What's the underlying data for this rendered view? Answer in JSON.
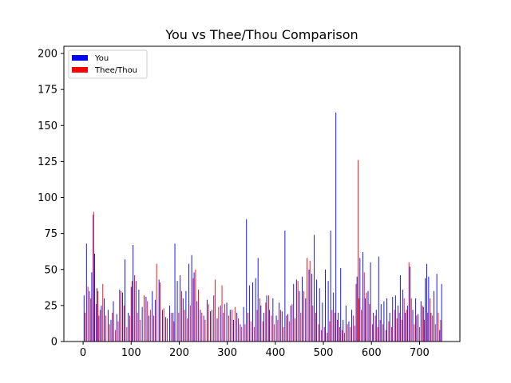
{
  "chart_data": {
    "type": "bar",
    "title": "You vs Thee/Thou Comparison",
    "xlabel": "",
    "ylabel": "",
    "xlim": [
      -40,
      784
    ],
    "ylim": [
      0,
      205
    ],
    "x_ticks": [
      0,
      100,
      200,
      300,
      400,
      500,
      600,
      700
    ],
    "y_ticks": [
      0,
      25,
      50,
      75,
      100,
      125,
      150,
      175,
      200
    ],
    "grid": false,
    "legend_position": "top-left",
    "series": [
      {
        "name": "You",
        "color": "#0000ff",
        "points": [
          [
            2,
            32
          ],
          [
            7,
            68
          ],
          [
            13,
            35
          ],
          [
            18,
            48
          ],
          [
            21,
            88
          ],
          [
            24,
            61
          ],
          [
            29,
            37
          ],
          [
            33,
            18
          ],
          [
            38,
            25
          ],
          [
            44,
            30
          ],
          [
            52,
            22
          ],
          [
            58,
            15
          ],
          [
            63,
            28
          ],
          [
            70,
            19
          ],
          [
            76,
            36
          ],
          [
            82,
            34
          ],
          [
            87,
            57
          ],
          [
            94,
            20
          ],
          [
            100,
            38
          ],
          [
            104,
            67
          ],
          [
            110,
            42
          ],
          [
            116,
            36
          ],
          [
            123,
            24
          ],
          [
            131,
            31
          ],
          [
            137,
            18
          ],
          [
            144,
            35
          ],
          [
            150,
            29
          ],
          [
            158,
            43
          ],
          [
            165,
            22
          ],
          [
            172,
            17
          ],
          [
            180,
            25
          ],
          [
            187,
            20
          ],
          [
            191,
            68
          ],
          [
            196,
            42
          ],
          [
            202,
            46
          ],
          [
            208,
            30
          ],
          [
            214,
            35
          ],
          [
            220,
            54
          ],
          [
            226,
            60
          ],
          [
            231,
            48
          ],
          [
            237,
            28
          ],
          [
            244,
            22
          ],
          [
            251,
            18
          ],
          [
            258,
            29
          ],
          [
            265,
            21
          ],
          [
            272,
            32
          ],
          [
            279,
            16
          ],
          [
            286,
            25
          ],
          [
            292,
            20
          ],
          [
            299,
            27
          ],
          [
            306,
            22
          ],
          [
            313,
            15
          ],
          [
            320,
            20
          ],
          [
            327,
            12
          ],
          [
            334,
            24
          ],
          [
            340,
            85
          ],
          [
            346,
            39
          ],
          [
            353,
            41
          ],
          [
            359,
            44
          ],
          [
            364,
            58
          ],
          [
            370,
            25
          ],
          [
            376,
            20
          ],
          [
            382,
            32
          ],
          [
            388,
            22
          ],
          [
            395,
            30
          ],
          [
            402,
            18
          ],
          [
            408,
            27
          ],
          [
            414,
            21
          ],
          [
            420,
            77
          ],
          [
            426,
            19
          ],
          [
            432,
            25
          ],
          [
            438,
            40
          ],
          [
            444,
            43
          ],
          [
            450,
            35
          ],
          [
            456,
            45
          ],
          [
            463,
            30
          ],
          [
            470,
            50
          ],
          [
            476,
            47
          ],
          [
            481,
            74
          ],
          [
            486,
            43
          ],
          [
            492,
            37
          ],
          [
            498,
            27
          ],
          [
            504,
            50
          ],
          [
            510,
            42
          ],
          [
            515,
            77
          ],
          [
            521,
            34
          ],
          [
            526,
            159
          ],
          [
            531,
            20
          ],
          [
            536,
            51
          ],
          [
            541,
            15
          ],
          [
            547,
            25
          ],
          [
            553,
            14
          ],
          [
            559,
            22
          ],
          [
            565,
            11
          ],
          [
            570,
            45
          ],
          [
            576,
            58
          ],
          [
            582,
            62
          ],
          [
            587,
            30
          ],
          [
            593,
            35
          ],
          [
            598,
            55
          ],
          [
            604,
            20
          ],
          [
            610,
            22
          ],
          [
            615,
            59
          ],
          [
            620,
            26
          ],
          [
            626,
            28
          ],
          [
            632,
            30
          ],
          [
            638,
            20
          ],
          [
            644,
            31
          ],
          [
            650,
            32
          ],
          [
            655,
            25
          ],
          [
            660,
            46
          ],
          [
            665,
            36
          ],
          [
            670,
            20
          ],
          [
            675,
            25
          ],
          [
            680,
            52
          ],
          [
            686,
            22
          ],
          [
            692,
            30
          ],
          [
            697,
            19
          ],
          [
            703,
            28
          ],
          [
            708,
            24
          ],
          [
            712,
            44
          ],
          [
            715,
            54
          ],
          [
            719,
            45
          ],
          [
            724,
            20
          ],
          [
            730,
            35
          ],
          [
            736,
            47
          ],
          [
            742,
            8
          ],
          [
            746,
            40
          ]
        ]
      },
      {
        "name": "Thee/Thou",
        "color": "#ff0000",
        "points": [
          [
            4,
            20
          ],
          [
            10,
            38
          ],
          [
            16,
            30
          ],
          [
            22,
            90
          ],
          [
            27,
            26
          ],
          [
            31,
            35
          ],
          [
            36,
            22
          ],
          [
            41,
            40
          ],
          [
            47,
            18
          ],
          [
            55,
            12
          ],
          [
            61,
            20
          ],
          [
            67,
            8
          ],
          [
            73,
            14
          ],
          [
            79,
            35
          ],
          [
            85,
            25
          ],
          [
            91,
            10
          ],
          [
            97,
            18
          ],
          [
            102,
            42
          ],
          [
            107,
            46
          ],
          [
            113,
            20
          ],
          [
            119,
            15
          ],
          [
            127,
            32
          ],
          [
            134,
            28
          ],
          [
            140,
            22
          ],
          [
            147,
            18
          ],
          [
            153,
            54
          ],
          [
            160,
            41
          ],
          [
            168,
            23
          ],
          [
            175,
            16
          ],
          [
            183,
            20
          ],
          [
            189,
            14
          ],
          [
            199,
            20
          ],
          [
            205,
            35
          ],
          [
            211,
            22
          ],
          [
            217,
            16
          ],
          [
            223,
            25
          ],
          [
            229,
            44
          ],
          [
            234,
            50
          ],
          [
            240,
            36
          ],
          [
            247,
            20
          ],
          [
            254,
            15
          ],
          [
            261,
            26
          ],
          [
            268,
            22
          ],
          [
            275,
            43
          ],
          [
            282,
            24
          ],
          [
            289,
            39
          ],
          [
            295,
            26
          ],
          [
            303,
            18
          ],
          [
            310,
            22
          ],
          [
            316,
            24
          ],
          [
            323,
            16
          ],
          [
            330,
            10
          ],
          [
            337,
            12
          ],
          [
            343,
            20
          ],
          [
            349,
            14
          ],
          [
            356,
            10
          ],
          [
            362,
            22
          ],
          [
            368,
            30
          ],
          [
            374,
            14
          ],
          [
            380,
            27
          ],
          [
            386,
            32
          ],
          [
            392,
            18
          ],
          [
            398,
            12
          ],
          [
            405,
            15
          ],
          [
            411,
            22
          ],
          [
            417,
            10
          ],
          [
            423,
            18
          ],
          [
            429,
            14
          ],
          [
            435,
            26
          ],
          [
            441,
            16
          ],
          [
            447,
            42
          ],
          [
            453,
            20
          ],
          [
            459,
            35
          ],
          [
            466,
            58
          ],
          [
            472,
            56
          ],
          [
            478,
            25
          ],
          [
            484,
            20
          ],
          [
            490,
            12
          ],
          [
            496,
            8
          ],
          [
            502,
            10
          ],
          [
            508,
            6
          ],
          [
            513,
            14
          ],
          [
            518,
            22
          ],
          [
            524,
            20
          ],
          [
            529,
            15
          ],
          [
            534,
            10
          ],
          [
            539,
            8
          ],
          [
            544,
            6
          ],
          [
            550,
            12
          ],
          [
            556,
            10
          ],
          [
            562,
            18
          ],
          [
            568,
            40
          ],
          [
            572,
            126
          ],
          [
            574,
            30
          ],
          [
            579,
            22
          ],
          [
            585,
            48
          ],
          [
            590,
            34
          ],
          [
            596,
            26
          ],
          [
            602,
            12
          ],
          [
            608,
            18
          ],
          [
            613,
            10
          ],
          [
            618,
            15
          ],
          [
            624,
            12
          ],
          [
            630,
            8
          ],
          [
            636,
            14
          ],
          [
            642,
            10
          ],
          [
            648,
            22
          ],
          [
            653,
            16
          ],
          [
            658,
            20
          ],
          [
            663,
            15
          ],
          [
            668,
            30
          ],
          [
            673,
            22
          ],
          [
            678,
            55
          ],
          [
            683,
            30
          ],
          [
            689,
            12
          ],
          [
            694,
            18
          ],
          [
            700,
            10
          ],
          [
            706,
            25
          ],
          [
            710,
            15
          ],
          [
            717,
            20
          ],
          [
            722,
            30
          ],
          [
            727,
            18
          ],
          [
            733,
            12
          ],
          [
            739,
            20
          ],
          [
            744,
            15
          ]
        ]
      }
    ]
  }
}
